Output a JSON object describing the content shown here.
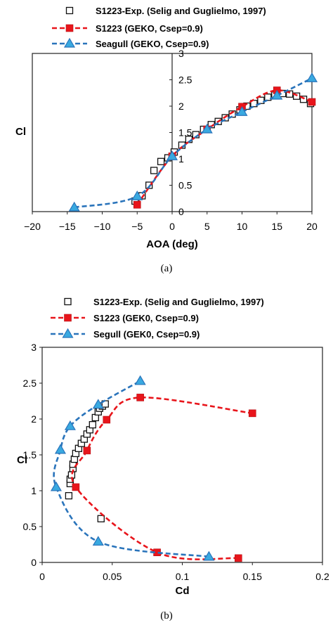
{
  "chart_data": [
    {
      "type": "scatter",
      "caption": "(a)",
      "xlabel": "AOA (deg)",
      "ylabel": "Cl",
      "xlim": [
        -20,
        20
      ],
      "ylim": [
        0,
        3
      ],
      "xticks": [
        "−20",
        "−15",
        "−10",
        "−5",
        "0",
        "5",
        "10",
        "15",
        "20"
      ],
      "yticks": [
        "0",
        "0.5",
        "1",
        "1.5",
        "2",
        "2.5",
        "3"
      ],
      "legend_position": "top",
      "series": [
        {
          "name": "S1223-Exp. (Selig and Guglielmo, 1997)",
          "style": "open-square",
          "color": "#000000",
          "x": [
            -5.3,
            -4.3,
            -3.3,
            -2.6,
            -1.6,
            -0.6,
            0.3,
            1.4,
            2.4,
            3.4,
            4.5,
            5.6,
            6.6,
            7.6,
            8.6,
            9.7,
            10.7,
            11.7,
            12.7,
            13.7,
            14.7,
            15.8,
            16.8,
            17.8,
            18.8,
            19.8
          ],
          "y": [
            0.2,
            0.3,
            0.5,
            0.78,
            0.95,
            1.02,
            1.13,
            1.26,
            1.37,
            1.46,
            1.56,
            1.65,
            1.71,
            1.78,
            1.85,
            1.93,
            2.0,
            2.05,
            2.11,
            2.17,
            2.21,
            2.24,
            2.23,
            2.19,
            2.13,
            2.05
          ]
        },
        {
          "name": "S1223 (GEKO, Csep=0.9)",
          "style": "square-dashed",
          "color": "#e8151b",
          "x": [
            -5,
            0,
            5,
            10,
            15,
            20
          ],
          "y": [
            0.13,
            1.05,
            1.56,
            1.99,
            2.3,
            2.08
          ]
        },
        {
          "name": "Seagull (GEKO, Csep=0.9)",
          "style": "triangle-dashed",
          "color": "#2a74bb",
          "x": [
            -14,
            -5,
            0,
            5,
            10,
            15,
            20
          ],
          "y": [
            0.08,
            0.29,
            1.05,
            1.56,
            1.89,
            2.2,
            2.53
          ]
        }
      ]
    },
    {
      "type": "scatter",
      "caption": "(b)",
      "xlabel": "Cd",
      "ylabel": "Cl",
      "xlim": [
        0,
        0.2
      ],
      "ylim": [
        0,
        3
      ],
      "xticks": [
        "0",
        "0.05",
        "0.1",
        "0.15",
        "0.2"
      ],
      "yticks": [
        "0",
        "0.5",
        "1",
        "1.5",
        "2",
        "2.5",
        "3"
      ],
      "legend_position": "top",
      "series": [
        {
          "name": "S1223-Exp. (Selig and Guglielmo, 1997)",
          "style": "open-square",
          "color": "#000000",
          "x": [
            0.019,
            0.02,
            0.02,
            0.021,
            0.022,
            0.022,
            0.023,
            0.024,
            0.026,
            0.028,
            0.03,
            0.032,
            0.034,
            0.036,
            0.038,
            0.04,
            0.041,
            0.043,
            0.045,
            0.042
          ],
          "y": [
            0.93,
            1.1,
            1.16,
            1.22,
            1.31,
            1.37,
            1.44,
            1.52,
            1.59,
            1.66,
            1.72,
            1.79,
            1.85,
            1.92,
            2.02,
            2.1,
            2.15,
            2.18,
            2.21,
            0.61
          ]
        },
        {
          "name": "S1223 (GEK0, Csep=0.9)",
          "style": "square-dashed",
          "color": "#e8151b",
          "x": [
            0.14,
            0.082,
            0.024,
            0.032,
            0.046,
            0.07,
            0.15
          ],
          "y": [
            0.06,
            0.14,
            1.05,
            1.56,
            1.99,
            2.3,
            2.08
          ]
        },
        {
          "name": "Segull (GEK0, Csep=0.9)",
          "style": "triangle-dashed",
          "color": "#2a74bb",
          "x": [
            0.119,
            0.04,
            0.01,
            0.013,
            0.02,
            0.04,
            0.07
          ],
          "y": [
            0.08,
            0.29,
            1.05,
            1.57,
            1.9,
            2.2,
            2.53
          ]
        }
      ]
    }
  ]
}
